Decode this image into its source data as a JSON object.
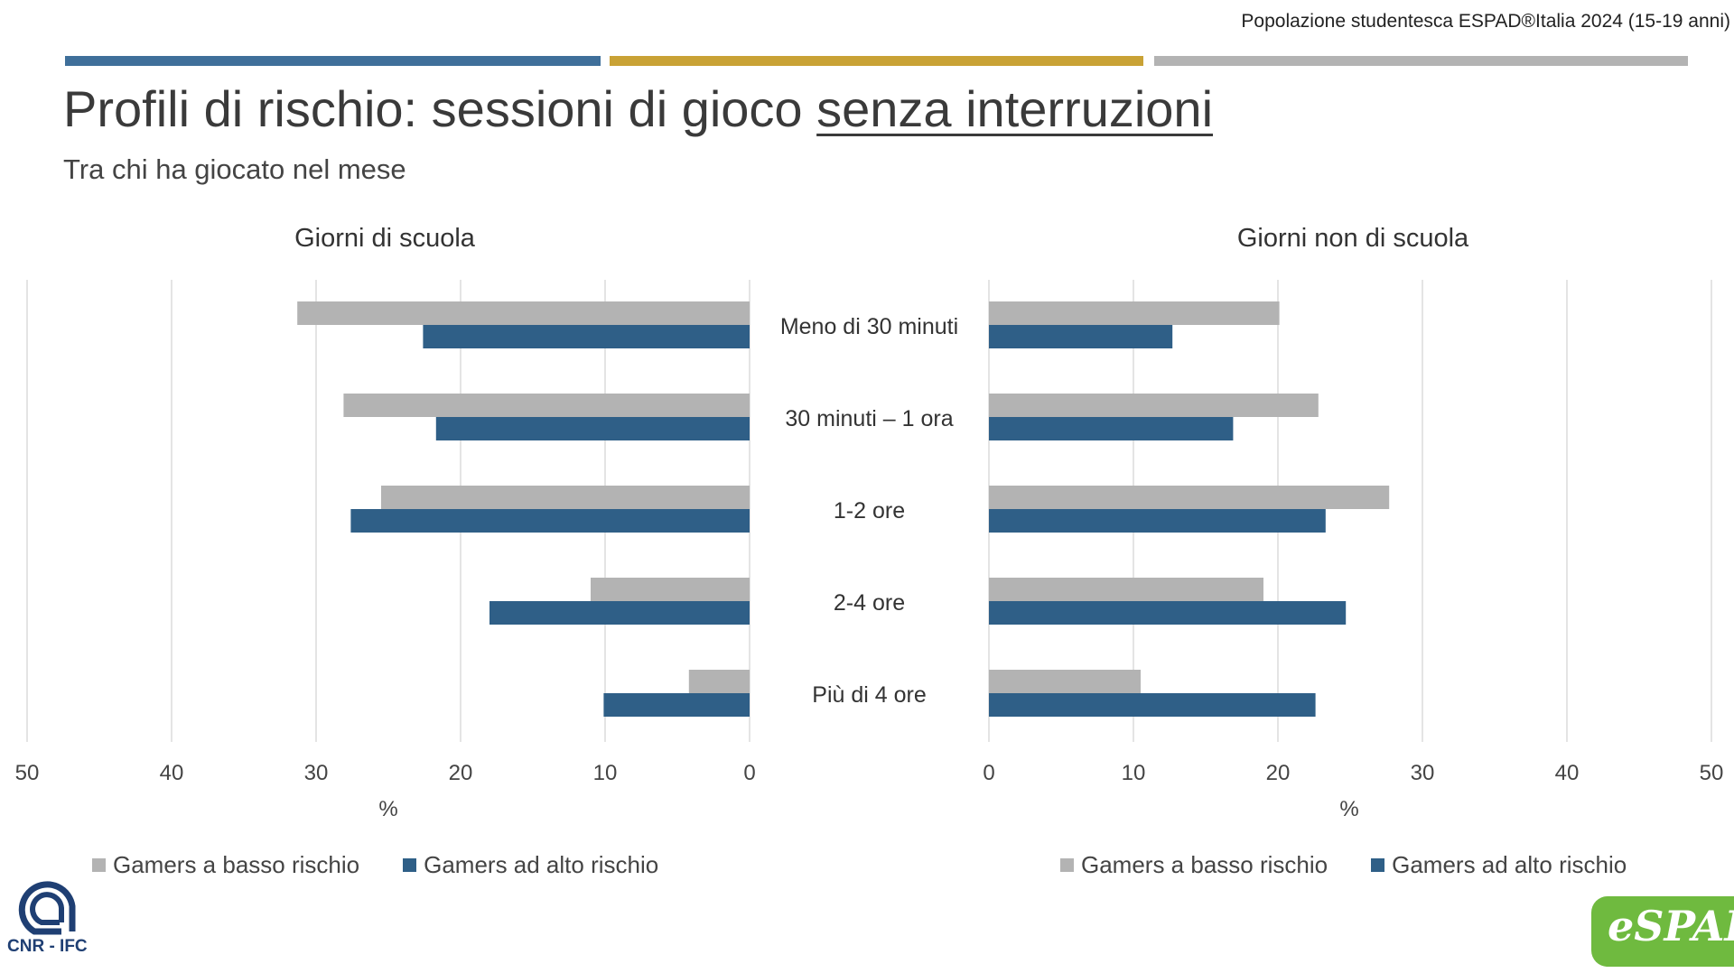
{
  "header": {
    "source": "Popolazione studentesca ESPAD®Italia 2024 (15-19 anni)",
    "title_plain": "Profili di rischio: sessioni di gioco ",
    "title_underlined": "senza interruzioni",
    "subtitle": "Tra chi ha giocato nel mese"
  },
  "colors": {
    "rule_1": "#3f6f9a",
    "rule_2": "#c9a235",
    "rule_3": "#b3b3b3",
    "low_risk": "#b3b3b3",
    "high_risk": "#2f5f87"
  },
  "chart_data": [
    {
      "type": "bar",
      "orientation": "horizontal",
      "direction": "reversed",
      "title": "Giorni di scuola",
      "xlabel": "%",
      "xlim": [
        0,
        50
      ],
      "xticks": [
        "50",
        "40",
        "30",
        "20",
        "10",
        "0"
      ],
      "grid": true,
      "legend": "bottom",
      "categories": [
        "Meno di 30 minuti",
        "30 minuti – 1 ora",
        "1-2 ore",
        "2-4 ore",
        "Più di 4 ore"
      ],
      "series": [
        {
          "name": "Gamers a basso rischio",
          "values": [
            31.3,
            28.1,
            25.5,
            11.0,
            4.2
          ]
        },
        {
          "name": "Gamers ad alto rischio",
          "values": [
            22.6,
            21.7,
            27.6,
            18.0,
            10.1
          ]
        }
      ]
    },
    {
      "type": "bar",
      "orientation": "horizontal",
      "title": "Giorni non di scuola",
      "xlabel": "%",
      "xlim": [
        0,
        50
      ],
      "xticks": [
        "0",
        "10",
        "20",
        "30",
        "40",
        "50"
      ],
      "grid": true,
      "legend": "bottom",
      "categories": [
        "Meno di 30 minuti",
        "30 minuti – 1 ora",
        "1-2 ore",
        "2-4 ore",
        "Più di 4 ore"
      ],
      "series": [
        {
          "name": "Gamers a basso rischio",
          "values": [
            20.1,
            22.8,
            27.7,
            19.0,
            10.5
          ]
        },
        {
          "name": "Gamers ad alto rischio",
          "values": [
            12.7,
            16.9,
            23.3,
            24.7,
            22.6
          ]
        }
      ]
    }
  ],
  "logos": {
    "cnr": "CNR - IFC",
    "espad": "eSPAD"
  }
}
